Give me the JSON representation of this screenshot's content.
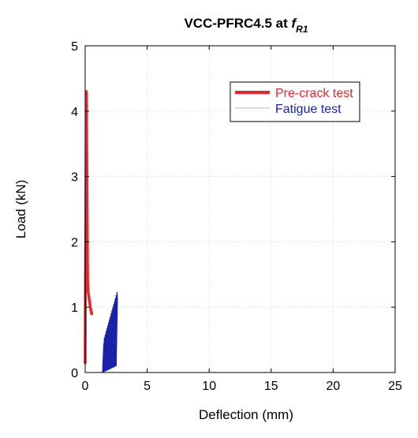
{
  "chart_data": {
    "type": "line",
    "title": {
      "main": "VCC-PFRC4.5 at ",
      "italic": "f",
      "subscript": "R1"
    },
    "xlabel": "Deflection (mm)",
    "ylabel": "Load (kN)",
    "xlim": [
      0,
      25
    ],
    "ylim": [
      0,
      5
    ],
    "xticks": [
      0,
      5,
      10,
      15,
      20,
      25
    ],
    "yticks": [
      0,
      1,
      2,
      3,
      4,
      5
    ],
    "grid": true,
    "legend_position": "top-right",
    "series": [
      {
        "name": "Pre-crack test",
        "color": "#e8262b",
        "x": [
          0.0,
          0.02,
          0.05,
          0.07,
          0.1,
          0.12,
          0.14,
          0.16,
          0.18,
          0.2,
          0.22,
          0.25,
          0.28,
          0.31,
          0.34,
          0.38,
          0.42,
          0.46,
          0.5,
          0.53
        ],
        "y": [
          0.15,
          1.35,
          2.3,
          3.25,
          4.3,
          3.75,
          3.15,
          2.5,
          1.85,
          1.4,
          1.28,
          1.22,
          1.18,
          1.14,
          1.1,
          1.05,
          0.99,
          0.95,
          0.91,
          0.9
        ]
      },
      {
        "name": "Fatigue test",
        "color": "#1a22aa",
        "cycles_x_start": 1.4,
        "cycles_x_end": 2.5,
        "load_min": 0.0,
        "load_max_start": 0.5,
        "load_max_end": 1.25
      }
    ]
  }
}
